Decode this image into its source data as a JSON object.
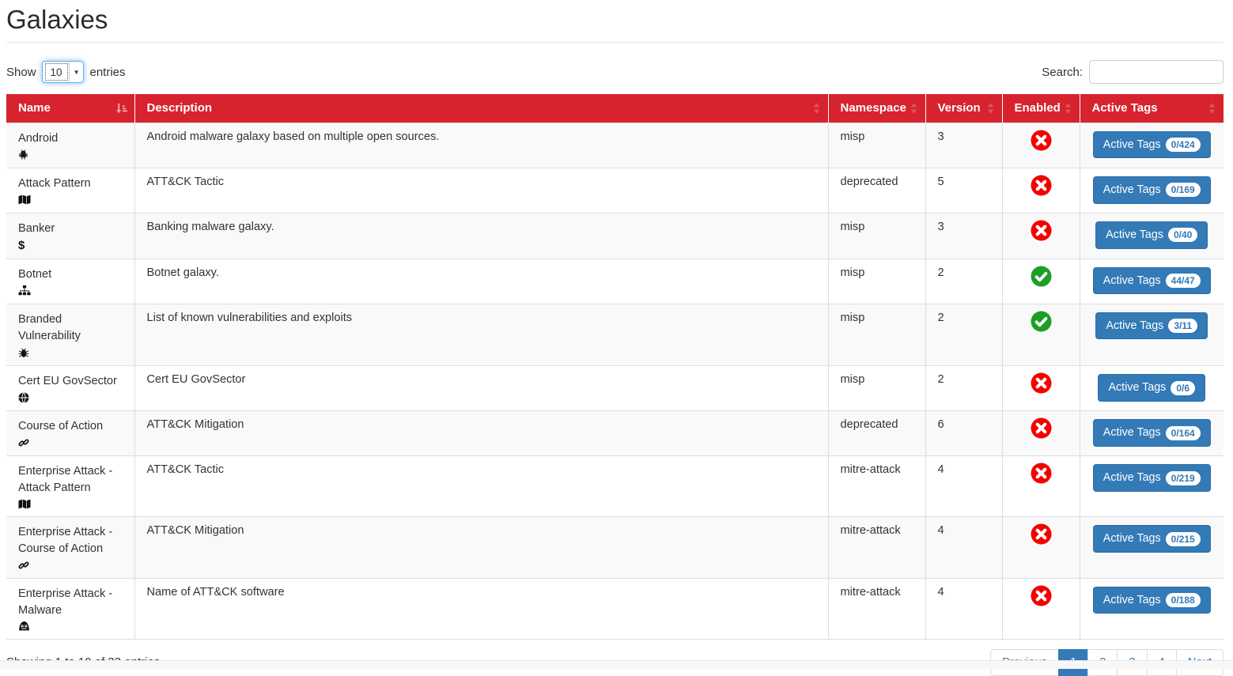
{
  "page": {
    "title": "Galaxies"
  },
  "controls": {
    "show_label": "Show",
    "page_length": "10",
    "entries_label": "entries",
    "search_label": "Search:",
    "search_value": ""
  },
  "table": {
    "columns": [
      {
        "label": "Name",
        "sort": "asc"
      },
      {
        "label": "Description",
        "sort": "none"
      },
      {
        "label": "Namespace",
        "sort": "none"
      },
      {
        "label": "Version",
        "sort": "none"
      },
      {
        "label": "Enabled",
        "sort": "none"
      },
      {
        "label": "Active Tags",
        "sort": "none"
      }
    ],
    "active_tags_button_label": "Active Tags",
    "rows": [
      {
        "name": "Android",
        "icon": "android-icon",
        "description": "Android malware galaxy based on multiple open sources.",
        "namespace": "misp",
        "version": "3",
        "enabled": false,
        "active_tags_count": "0/424"
      },
      {
        "name": "Attack Pattern",
        "icon": "map-icon",
        "description": "ATT&CK Tactic",
        "namespace": "deprecated",
        "version": "5",
        "enabled": false,
        "active_tags_count": "0/169"
      },
      {
        "name": "Banker",
        "icon": "dollar-icon",
        "description": "Banking malware galaxy.",
        "namespace": "misp",
        "version": "3",
        "enabled": false,
        "active_tags_count": "0/40"
      },
      {
        "name": "Botnet",
        "icon": "sitemap-icon",
        "description": "Botnet galaxy.",
        "namespace": "misp",
        "version": "2",
        "enabled": true,
        "active_tags_count": "44/47"
      },
      {
        "name": "Branded Vulnerability",
        "icon": "bug-icon",
        "description": "List of known vulnerabilities and exploits",
        "namespace": "misp",
        "version": "2",
        "enabled": true,
        "active_tags_count": "3/11"
      },
      {
        "name": "Cert EU GovSector",
        "icon": "globe-icon",
        "description": "Cert EU GovSector",
        "namespace": "misp",
        "version": "2",
        "enabled": false,
        "active_tags_count": "0/6"
      },
      {
        "name": "Course of Action",
        "icon": "chain-icon",
        "description": "ATT&CK Mitigation",
        "namespace": "deprecated",
        "version": "6",
        "enabled": false,
        "active_tags_count": "0/164"
      },
      {
        "name": "Enterprise Attack - Attack Pattern",
        "icon": "map-icon",
        "description": "ATT&CK Tactic",
        "namespace": "mitre-attack",
        "version": "4",
        "enabled": false,
        "active_tags_count": "0/219"
      },
      {
        "name": "Enterprise Attack - Course of Action",
        "icon": "chain-icon",
        "description": "ATT&CK Mitigation",
        "namespace": "mitre-attack",
        "version": "4",
        "enabled": false,
        "active_tags_count": "0/215"
      },
      {
        "name": "Enterprise Attack - Malware",
        "icon": "monster-icon",
        "description": "Name of ATT&CK software",
        "namespace": "mitre-attack",
        "version": "4",
        "enabled": false,
        "active_tags_count": "0/188"
      }
    ]
  },
  "footer": {
    "showing_text": "Showing 1 to 10 of 33 entries",
    "pagination": [
      "Previous",
      "1",
      "2",
      "3",
      "4",
      "Next"
    ],
    "active_page": "1",
    "disabled_items": [
      "Previous"
    ]
  },
  "colors": {
    "header_red": "#d6232e",
    "button_blue": "#337ab7",
    "enabled_green": "#1e9e26",
    "disabled_red": "#f40000",
    "stripe_grey": "#f9f9f9"
  }
}
